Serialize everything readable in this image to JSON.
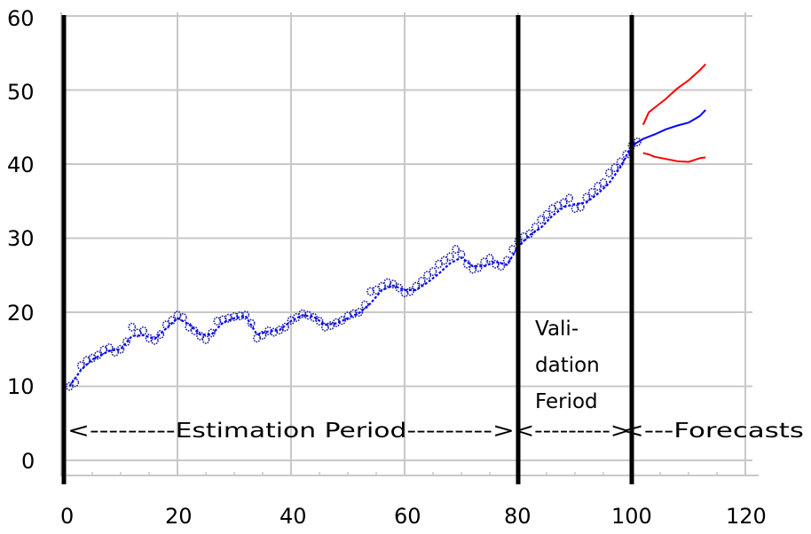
{
  "chart_data": {
    "type": "line",
    "title": "",
    "xlabel": "",
    "ylabel": "",
    "xlim": [
      0,
      120
    ],
    "ylim": [
      0,
      60
    ],
    "x_ticks": [
      0,
      20,
      40,
      60,
      80,
      100,
      120
    ],
    "y_ticks": [
      0,
      10,
      20,
      30,
      40,
      50,
      60
    ],
    "grid": true,
    "legend": null,
    "vertical_markers": [
      0,
      80,
      100
    ],
    "annotations": [
      {
        "text": "<---------Estimation Period--------->",
        "x_range": [
          0,
          80
        ],
        "y": 4.5
      },
      {
        "text": "<--------->",
        "x_range": [
          80,
          100
        ],
        "y": 4.5
      },
      {
        "text": "<---Forecasts",
        "x_start": 100,
        "y": 4.5
      },
      {
        "text": "Vali-",
        "x": 82,
        "y": 18.5
      },
      {
        "text": "dation",
        "x": 82,
        "y": 13.5
      },
      {
        "text": "Feriod",
        "x": 82,
        "y": 8.5
      }
    ],
    "series": [
      {
        "name": "Actual (points)",
        "color": "#1a1aa0",
        "style": "markers",
        "x": [
          1,
          2,
          3,
          4,
          5,
          6,
          7,
          8,
          9,
          10,
          11,
          12,
          13,
          14,
          15,
          16,
          17,
          18,
          19,
          20,
          21,
          22,
          23,
          24,
          25,
          26,
          27,
          28,
          29,
          30,
          31,
          32,
          33,
          34,
          35,
          36,
          37,
          38,
          39,
          40,
          41,
          42,
          43,
          44,
          45,
          46,
          47,
          48,
          49,
          50,
          51,
          52,
          53,
          54,
          55,
          56,
          57,
          58,
          59,
          60,
          61,
          62,
          63,
          64,
          65,
          66,
          67,
          68,
          69,
          70,
          71,
          72,
          73,
          74,
          75,
          76,
          77,
          78,
          79,
          80,
          81,
          82,
          83,
          84,
          85,
          86,
          87,
          88,
          89,
          90,
          91,
          92,
          93,
          94,
          95,
          96,
          97,
          98,
          99,
          100,
          101
        ],
        "values": [
          10.0,
          10.5,
          12.8,
          13.5,
          13.8,
          14.2,
          14.9,
          15.2,
          14.6,
          15.0,
          16.0,
          18.0,
          17.2,
          17.5,
          16.5,
          16.2,
          17.0,
          18.3,
          18.9,
          19.6,
          19.3,
          18.0,
          17.5,
          16.8,
          16.3,
          17.2,
          18.8,
          19.0,
          19.2,
          19.4,
          19.5,
          19.6,
          18.5,
          16.5,
          16.9,
          17.5,
          17.3,
          17.6,
          18.0,
          18.9,
          19.3,
          19.8,
          19.6,
          19.3,
          18.8,
          18.0,
          18.2,
          18.6,
          18.9,
          19.5,
          19.8,
          20.0,
          21.0,
          22.8,
          23.0,
          23.5,
          24.0,
          23.8,
          23.3,
          22.6,
          22.8,
          23.5,
          24.2,
          25.0,
          25.5,
          26.5,
          27.0,
          27.5,
          28.5,
          27.8,
          26.5,
          25.8,
          26.0,
          26.8,
          27.3,
          26.5,
          26.2,
          27.0,
          28.5,
          29.6,
          30.2,
          30.6,
          31.5,
          32.5,
          33.2,
          34.0,
          34.4,
          34.8,
          35.4,
          34.0,
          34.2,
          35.5,
          36.2,
          37.0,
          37.5,
          38.8,
          39.5,
          40.3,
          41.3,
          42.5,
          43.0
        ]
      },
      {
        "name": "Fitted",
        "color": "#0000ff",
        "style": "dashed-line",
        "x": [
          1,
          3,
          5,
          8,
          10,
          12,
          14,
          16,
          18,
          20,
          22,
          24,
          26,
          28,
          30,
          32,
          34,
          36,
          38,
          40,
          42,
          44,
          46,
          48,
          50,
          52,
          54,
          56,
          58,
          60,
          62,
          64,
          66,
          68,
          70,
          72,
          74,
          76,
          78,
          80,
          82,
          84,
          86,
          88,
          90,
          92,
          94,
          96,
          98,
          100
        ],
        "values": [
          10.0,
          12.2,
          13.6,
          14.8,
          15.0,
          16.8,
          16.9,
          16.4,
          17.8,
          19.2,
          18.4,
          17.0,
          17.0,
          18.6,
          19.2,
          19.5,
          17.0,
          17.4,
          17.6,
          18.8,
          19.6,
          19.4,
          18.3,
          18.5,
          19.2,
          19.9,
          21.2,
          23.0,
          23.6,
          23.0,
          23.0,
          24.0,
          25.2,
          26.6,
          27.4,
          26.2,
          26.2,
          26.8,
          26.4,
          28.8,
          30.4,
          31.4,
          33.0,
          34.2,
          34.6,
          34.8,
          36.0,
          37.4,
          39.6,
          42.5
        ]
      },
      {
        "name": "Forecast",
        "color": "#0000ff",
        "style": "line",
        "x": [
          100,
          102,
          104,
          106,
          108,
          110,
          112,
          113
        ],
        "values": [
          42.5,
          43.4,
          44.0,
          44.7,
          45.2,
          45.6,
          46.5,
          47.3
        ]
      },
      {
        "name": "Upper bound",
        "color": "#ff0000",
        "style": "line",
        "x": [
          102,
          103,
          104,
          106,
          108,
          110,
          112,
          113
        ],
        "values": [
          45.3,
          47.0,
          47.6,
          48.8,
          50.2,
          51.3,
          52.7,
          53.5
        ]
      },
      {
        "name": "Lower bound",
        "color": "#ff0000",
        "style": "line",
        "x": [
          102,
          103,
          104,
          106,
          108,
          110,
          112,
          113
        ],
        "values": [
          41.5,
          41.3,
          41.0,
          40.7,
          40.4,
          40.3,
          40.8,
          40.9
        ]
      }
    ]
  },
  "labels": {
    "y_ticks": [
      "0",
      "10",
      "20",
      "30",
      "40",
      "50",
      "60"
    ],
    "x_ticks": [
      "0",
      "20",
      "40",
      "60",
      "80",
      "100",
      "120"
    ],
    "estimation": "<---------Estimation Period--------->",
    "validation_arrow": "<--------->",
    "forecasts": "<---Forecasts",
    "validation_line1": "Vali-",
    "validation_line2": "dation",
    "validation_line3": "Feriod"
  },
  "colors": {
    "grid": "#c8c8c8",
    "marker_line": "#000000",
    "actual": "#1a1aa0",
    "fitted": "#0000ff",
    "bounds": "#ff0000"
  }
}
